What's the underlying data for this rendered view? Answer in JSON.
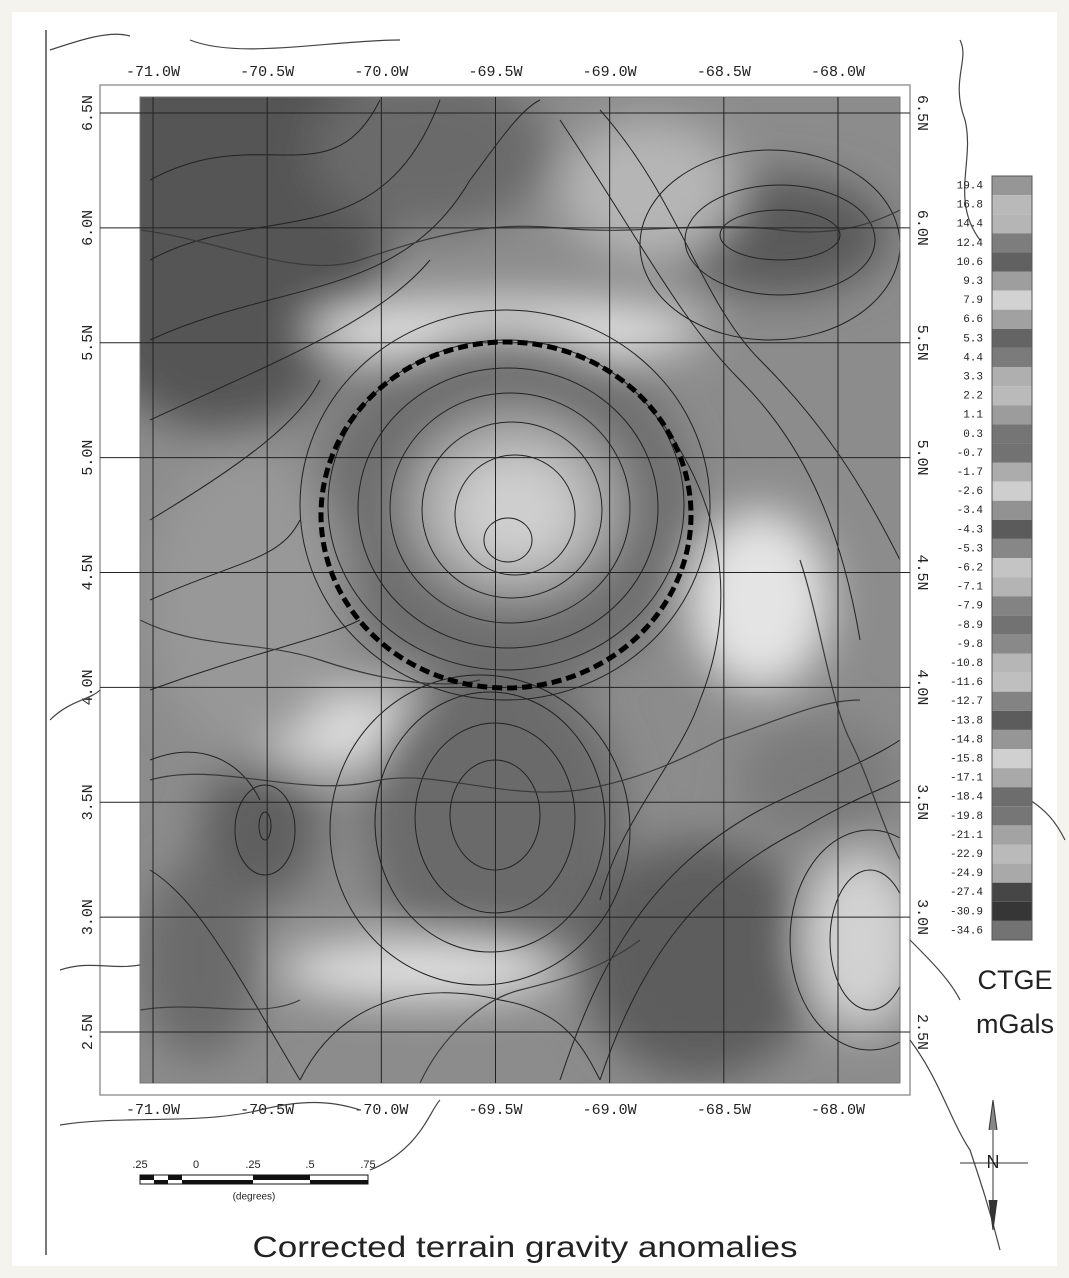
{
  "map": {
    "title": "Corrected terrain gravity anomalies",
    "x_ticks": [
      {
        "value": -71.0,
        "label": "-71.0W"
      },
      {
        "value": -70.5,
        "label": "-70.5W"
      },
      {
        "value": -70.0,
        "label": "-70.0W"
      },
      {
        "value": -69.5,
        "label": "-69.5W"
      },
      {
        "value": -69.0,
        "label": "-69.0W"
      },
      {
        "value": -68.5,
        "label": "-68.5W"
      },
      {
        "value": -68.0,
        "label": "-68.0W"
      }
    ],
    "y_ticks": [
      {
        "value": 6.5,
        "label": "6.5N"
      },
      {
        "value": 6.0,
        "label": "6.0N"
      },
      {
        "value": 5.5,
        "label": "5.5N"
      },
      {
        "value": 5.0,
        "label": "5.0N"
      },
      {
        "value": 4.5,
        "label": "4.5N"
      },
      {
        "value": 4.0,
        "label": "4.0N"
      },
      {
        "value": 3.5,
        "label": "3.5N"
      },
      {
        "value": 3.0,
        "label": "3.0N"
      },
      {
        "value": 2.5,
        "label": "2.5N"
      }
    ],
    "colorbar": {
      "levels": [
        19.4,
        16.8,
        14.4,
        12.4,
        10.6,
        9.3,
        7.9,
        6.6,
        5.3,
        4.4,
        3.3,
        2.2,
        1.1,
        0.3,
        -0.7,
        -1.7,
        -2.6,
        -3.4,
        -4.3,
        -5.3,
        -6.2,
        -7.1,
        -7.9,
        -8.9,
        -9.8,
        -10.8,
        -11.6,
        -12.7,
        -13.8,
        -14.8,
        -15.8,
        -17.1,
        -18.4,
        -19.8,
        -21.1,
        -22.9,
        -24.9,
        -27.4,
        -30.9,
        -34.6
      ],
      "name": "CTGE",
      "unit": "mGals"
    },
    "scale_bar": {
      "labels": [
        ".25",
        "0",
        ".25",
        ".5",
        ".75"
      ],
      "caption": "(degrees)"
    },
    "north_label": "N"
  }
}
